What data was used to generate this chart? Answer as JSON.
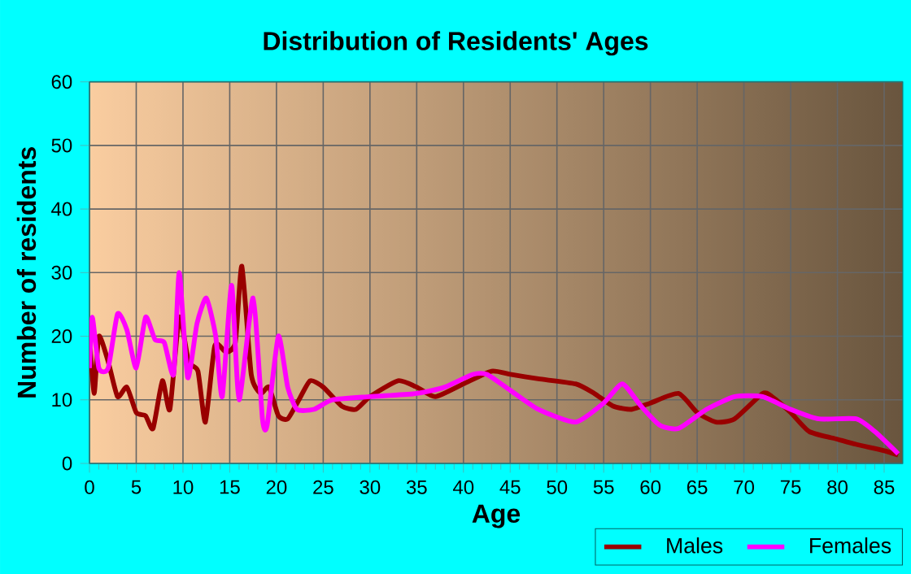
{
  "chart_data": {
    "type": "line",
    "title": "Distribution of Residents' Ages",
    "xlabel": "Age",
    "ylabel": "Number of residents",
    "xlim": [
      0,
      87
    ],
    "ylim": [
      0,
      60
    ],
    "xticks": [
      0,
      5,
      10,
      15,
      20,
      25,
      30,
      35,
      40,
      45,
      50,
      55,
      60,
      65,
      70,
      75,
      80,
      85
    ],
    "yticks": [
      0,
      10,
      20,
      30,
      40,
      50,
      60
    ],
    "grid": true,
    "legend": "bottom",
    "marker": "none",
    "line_style": "solid",
    "series": [
      {
        "name": "Males",
        "color": "#990000",
        "x": [
          0,
          0.5,
          1,
          2,
          3,
          4,
          5,
          6,
          6.8,
          7.8,
          8.6,
          9.6,
          10.6,
          11.6,
          12.4,
          13.4,
          14.6,
          15.6,
          16.3,
          17.3,
          18.3,
          19.2,
          20.2,
          21.2,
          22.4,
          23.6,
          25,
          27,
          28.5,
          30,
          33,
          35,
          37,
          40,
          43,
          45,
          48,
          52,
          54,
          56,
          58,
          60,
          63,
          65,
          67,
          69,
          72,
          73,
          75,
          77,
          80,
          82,
          85,
          86.5
        ],
        "values": [
          20,
          11,
          20,
          16,
          10.5,
          12,
          8,
          7.5,
          5.5,
          13,
          8.5,
          23,
          16,
          14.5,
          6.5,
          18.5,
          17.5,
          19,
          31,
          14,
          11,
          12,
          7.5,
          7,
          10,
          13,
          12,
          9,
          8.5,
          10.5,
          13,
          12,
          10.5,
          12.5,
          14.5,
          14,
          13.3,
          12.5,
          11,
          9,
          8.5,
          9.5,
          11,
          8,
          6.5,
          7,
          11,
          10.5,
          8,
          5,
          3.8,
          3,
          2,
          1.3
        ]
      },
      {
        "name": "Females",
        "color": "#ff00ff",
        "x": [
          0,
          0.3,
          1,
          2,
          3,
          4,
          5,
          6,
          7,
          8,
          9,
          9.6,
          10.5,
          11.5,
          12.5,
          13.5,
          14.2,
          15.2,
          16,
          17.5,
          18.5,
          19,
          20.2,
          21.2,
          22.2,
          24,
          26,
          30,
          35,
          38,
          41,
          42.5,
          45,
          48,
          52,
          55,
          57,
          59,
          61,
          63,
          66,
          69,
          72,
          75,
          78,
          82,
          84,
          86.5
        ],
        "values": [
          15,
          23,
          15,
          15,
          23.5,
          21,
          15,
          23,
          19.5,
          19,
          14,
          30,
          13.5,
          22,
          26,
          20,
          10.5,
          28,
          10,
          26,
          7,
          6,
          20,
          12,
          8.5,
          8.5,
          10,
          10.5,
          11,
          12,
          14,
          14,
          11.5,
          8.5,
          6.5,
          9.5,
          12.5,
          9,
          6,
          5.5,
          8.5,
          10.5,
          10.5,
          8.5,
          7,
          7,
          5,
          1.5
        ]
      }
    ]
  }
}
